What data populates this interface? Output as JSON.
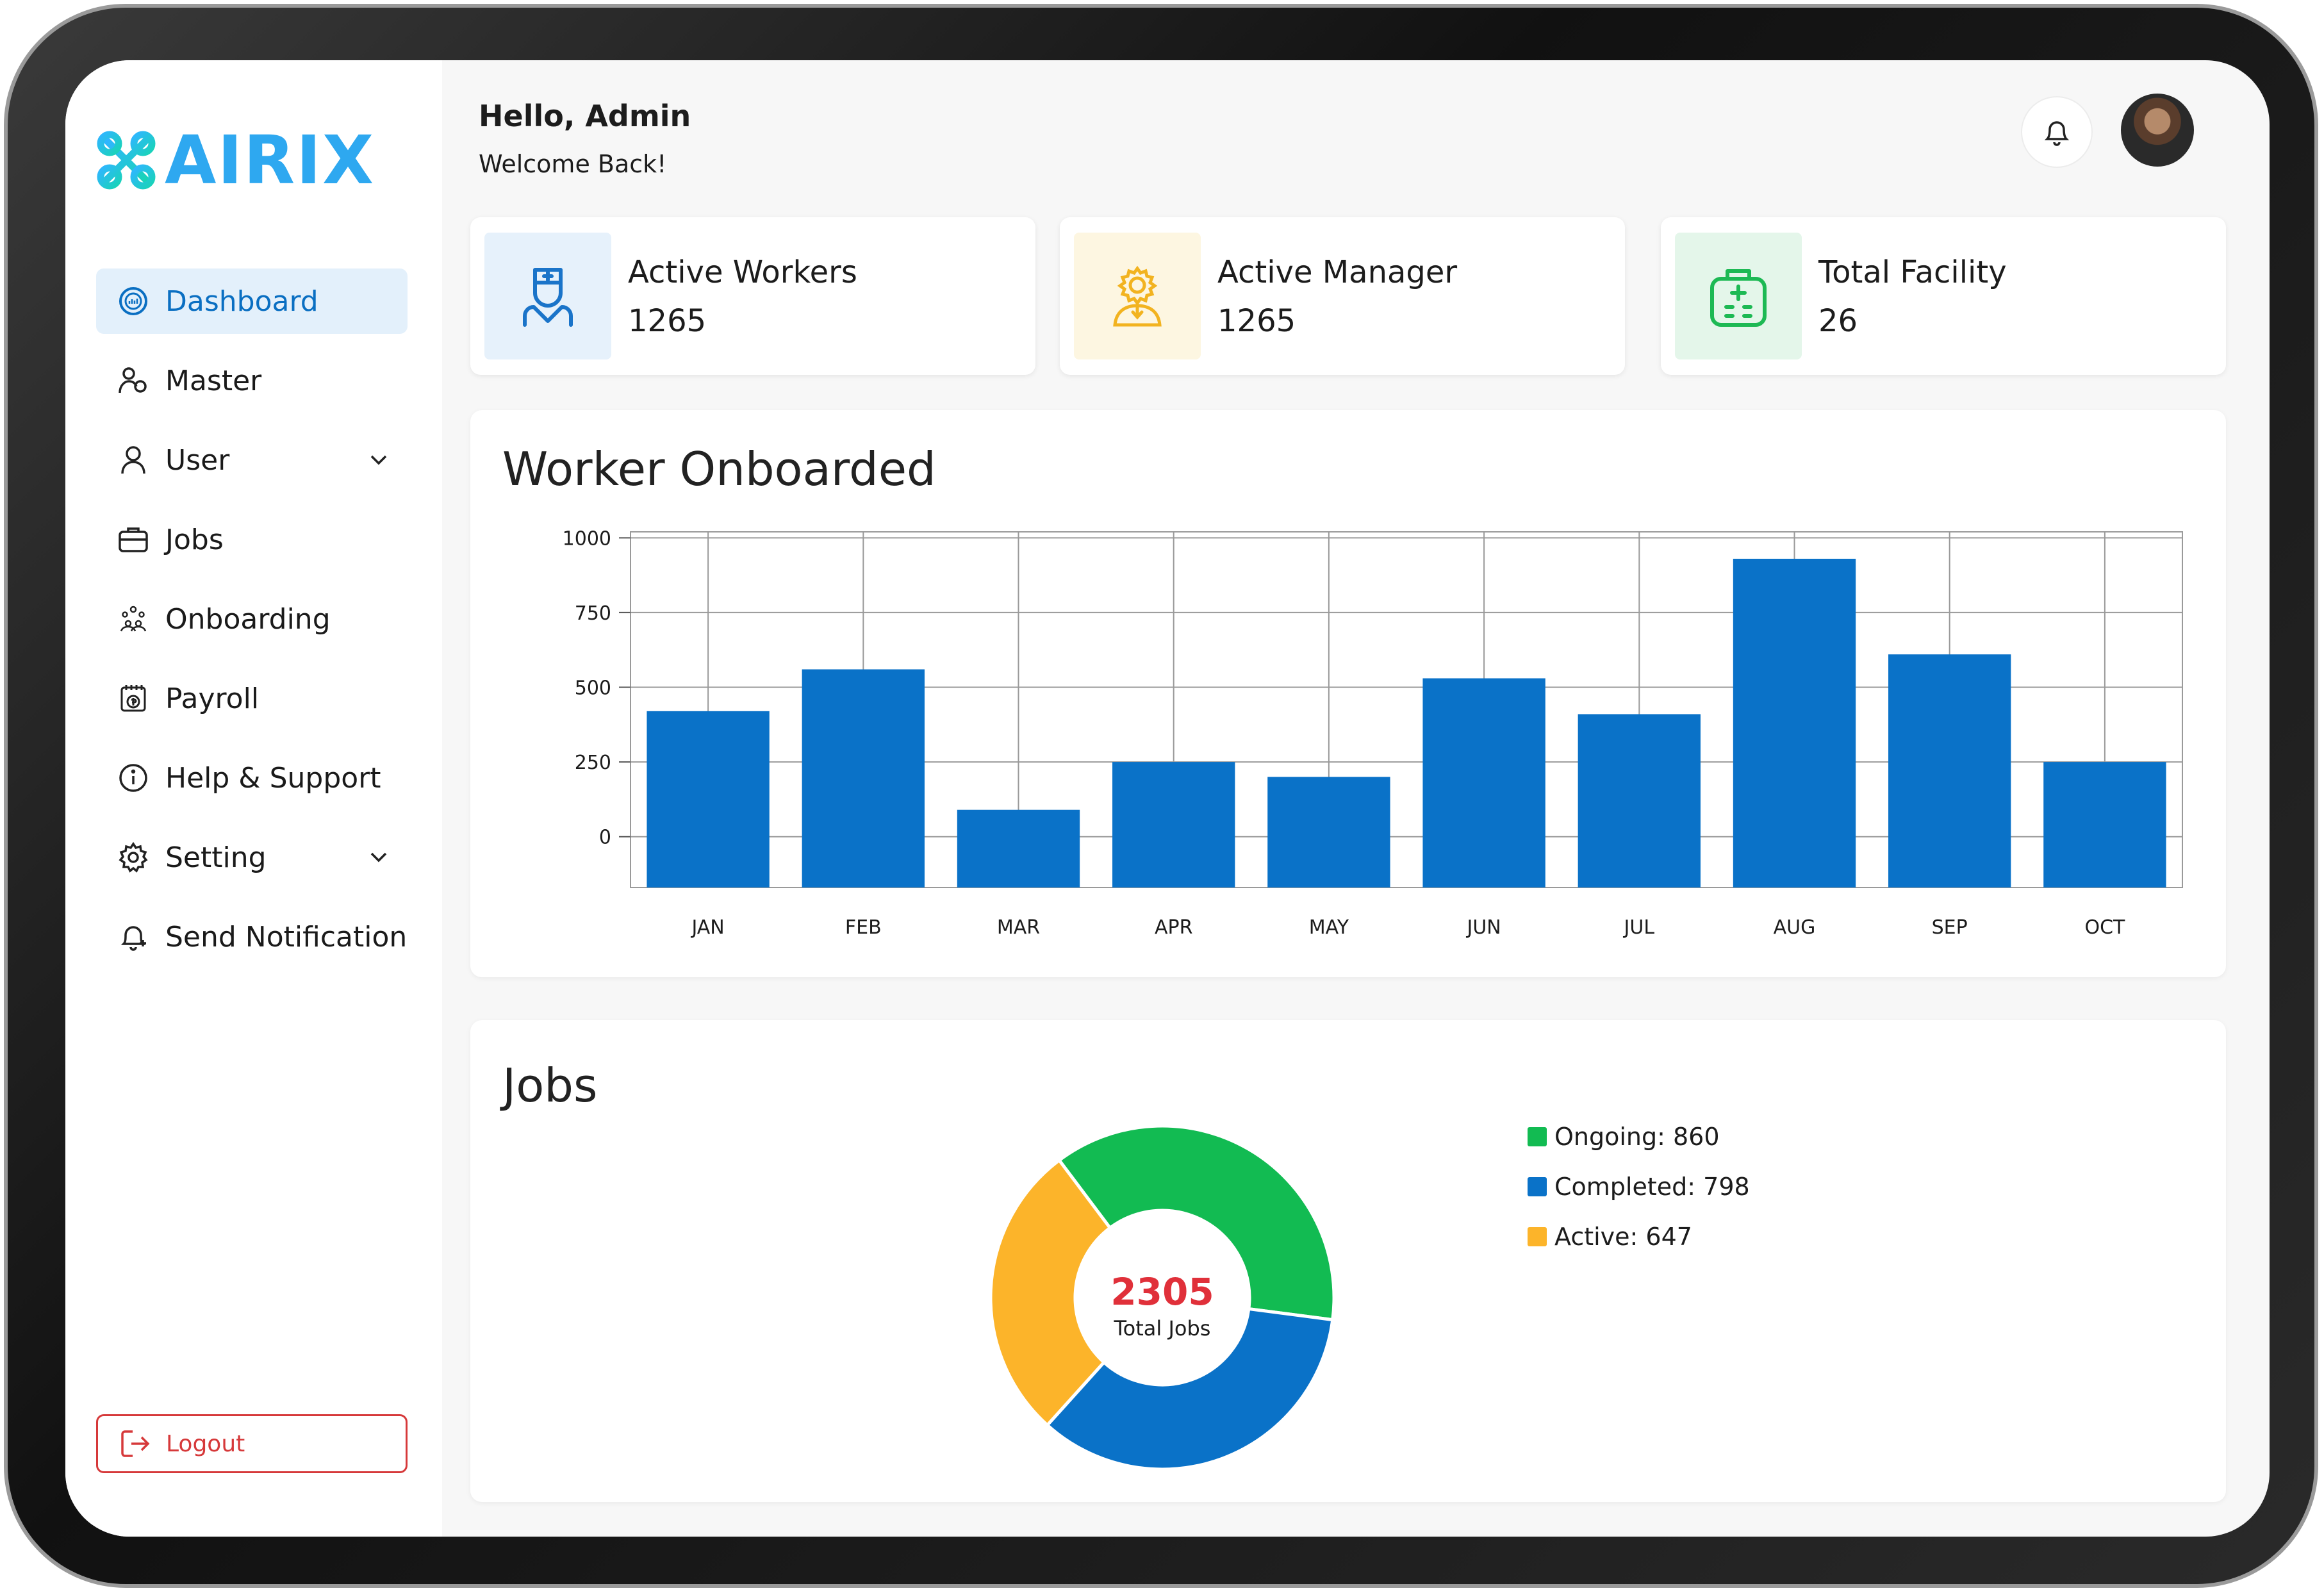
{
  "brand": {
    "name": "AIRIX",
    "color": "#2ea8f0"
  },
  "header": {
    "greeting": "Hello, Admin",
    "subtext": "Welcome Back!"
  },
  "nav": {
    "items": [
      {
        "label": "Dashboard",
        "icon": "dashboard-icon",
        "active": true
      },
      {
        "label": "Master",
        "icon": "users-icon"
      },
      {
        "label": "User",
        "icon": "user-icon",
        "has_submenu": true
      },
      {
        "label": "Jobs",
        "icon": "briefcase-icon"
      },
      {
        "label": "Onboarding",
        "icon": "team-icon"
      },
      {
        "label": "Payroll",
        "icon": "payroll-icon"
      },
      {
        "label": "Help & Support",
        "icon": "info-icon"
      },
      {
        "label": "Setting",
        "icon": "gear-icon",
        "has_submenu": true
      },
      {
        "label": "Send Notification",
        "icon": "bell-plus-icon"
      }
    ],
    "logout": "Logout"
  },
  "stats": [
    {
      "label": "Active Workers",
      "value": "1265",
      "icon": "nurse-icon",
      "bg": "#e6f1fb",
      "color": "#1a74c9"
    },
    {
      "label": "Active Manager",
      "value": "1265",
      "icon": "manager-gear-icon",
      "bg": "#fdf6e1",
      "color": "#f2b320"
    },
    {
      "label": "Total Facility",
      "value": "26",
      "icon": "hospital-icon",
      "bg": "#e4f6ea",
      "color": "#1db954"
    }
  ],
  "worker_chart": {
    "title": "Worker Onboarded"
  },
  "jobs_chart": {
    "title": "Jobs",
    "center_value": "2305",
    "center_label": "Total Jobs",
    "legend": [
      {
        "label": "Ongoing: 860",
        "color": "#12bb52"
      },
      {
        "label": "Completed: 798",
        "color": "#0a72c8"
      },
      {
        "label": "Active: 647",
        "color": "#fcb42a"
      }
    ]
  },
  "chart_data": [
    {
      "type": "bar",
      "title": "Worker Onboarded",
      "categories": [
        "JAN",
        "FEB",
        "MAR",
        "APR",
        "MAY",
        "JUN",
        "JUL",
        "AUG",
        "SEP",
        "OCT"
      ],
      "values": [
        420,
        560,
        90,
        250,
        200,
        530,
        410,
        930,
        610,
        250
      ],
      "yticks": [
        "0",
        "250",
        "500",
        "750",
        "1000"
      ],
      "ytick_values": [
        0,
        250,
        500,
        750,
        1000
      ],
      "ylim": [
        -170,
        1020
      ],
      "color": "#0a72c8",
      "grid": true
    },
    {
      "type": "pie",
      "title": "Jobs",
      "labels": [
        "Ongoing",
        "Completed",
        "Active"
      ],
      "values": [
        860,
        798,
        647
      ],
      "colors": [
        "#12bb52",
        "#0a72c8",
        "#fcb42a"
      ],
      "donut": true
    }
  ]
}
